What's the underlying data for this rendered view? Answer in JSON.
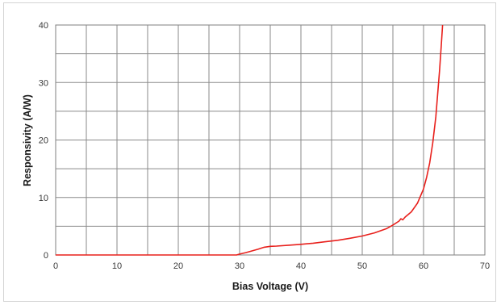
{
  "chart_data": {
    "type": "line",
    "title": "",
    "xlabel": "Bias Voltage (V)",
    "ylabel": "Responsivity (A/W)",
    "xlim": [
      0,
      70
    ],
    "ylim": [
      0,
      40
    ],
    "x_ticks": [
      0,
      10,
      20,
      30,
      40,
      50,
      60,
      70
    ],
    "y_ticks": [
      0,
      10,
      20,
      30,
      40
    ],
    "grid": {
      "x_major": 5,
      "y_major": 5,
      "shown": true
    },
    "legend": "none",
    "series": [
      {
        "color": "#e8201c",
        "x": [
          0,
          10,
          20,
          29.5,
          30,
          31,
          32,
          33,
          34,
          35,
          36,
          38,
          40,
          42,
          44,
          46,
          48,
          50,
          52,
          54,
          55,
          56,
          56.3,
          56.6,
          57,
          58,
          59,
          60,
          60.5,
          61,
          61.5,
          62,
          62.3,
          62.6,
          62.9,
          63.1
        ],
        "y": [
          0,
          0,
          0,
          0,
          0.15,
          0.4,
          0.7,
          1.0,
          1.35,
          1.5,
          1.55,
          1.7,
          1.85,
          2.05,
          2.3,
          2.55,
          2.9,
          3.3,
          3.85,
          4.6,
          5.2,
          5.9,
          6.3,
          6.1,
          6.6,
          7.5,
          9.0,
          11.5,
          13.5,
          16.0,
          19.5,
          24.0,
          28.0,
          32.0,
          36.5,
          40
        ]
      }
    ]
  }
}
